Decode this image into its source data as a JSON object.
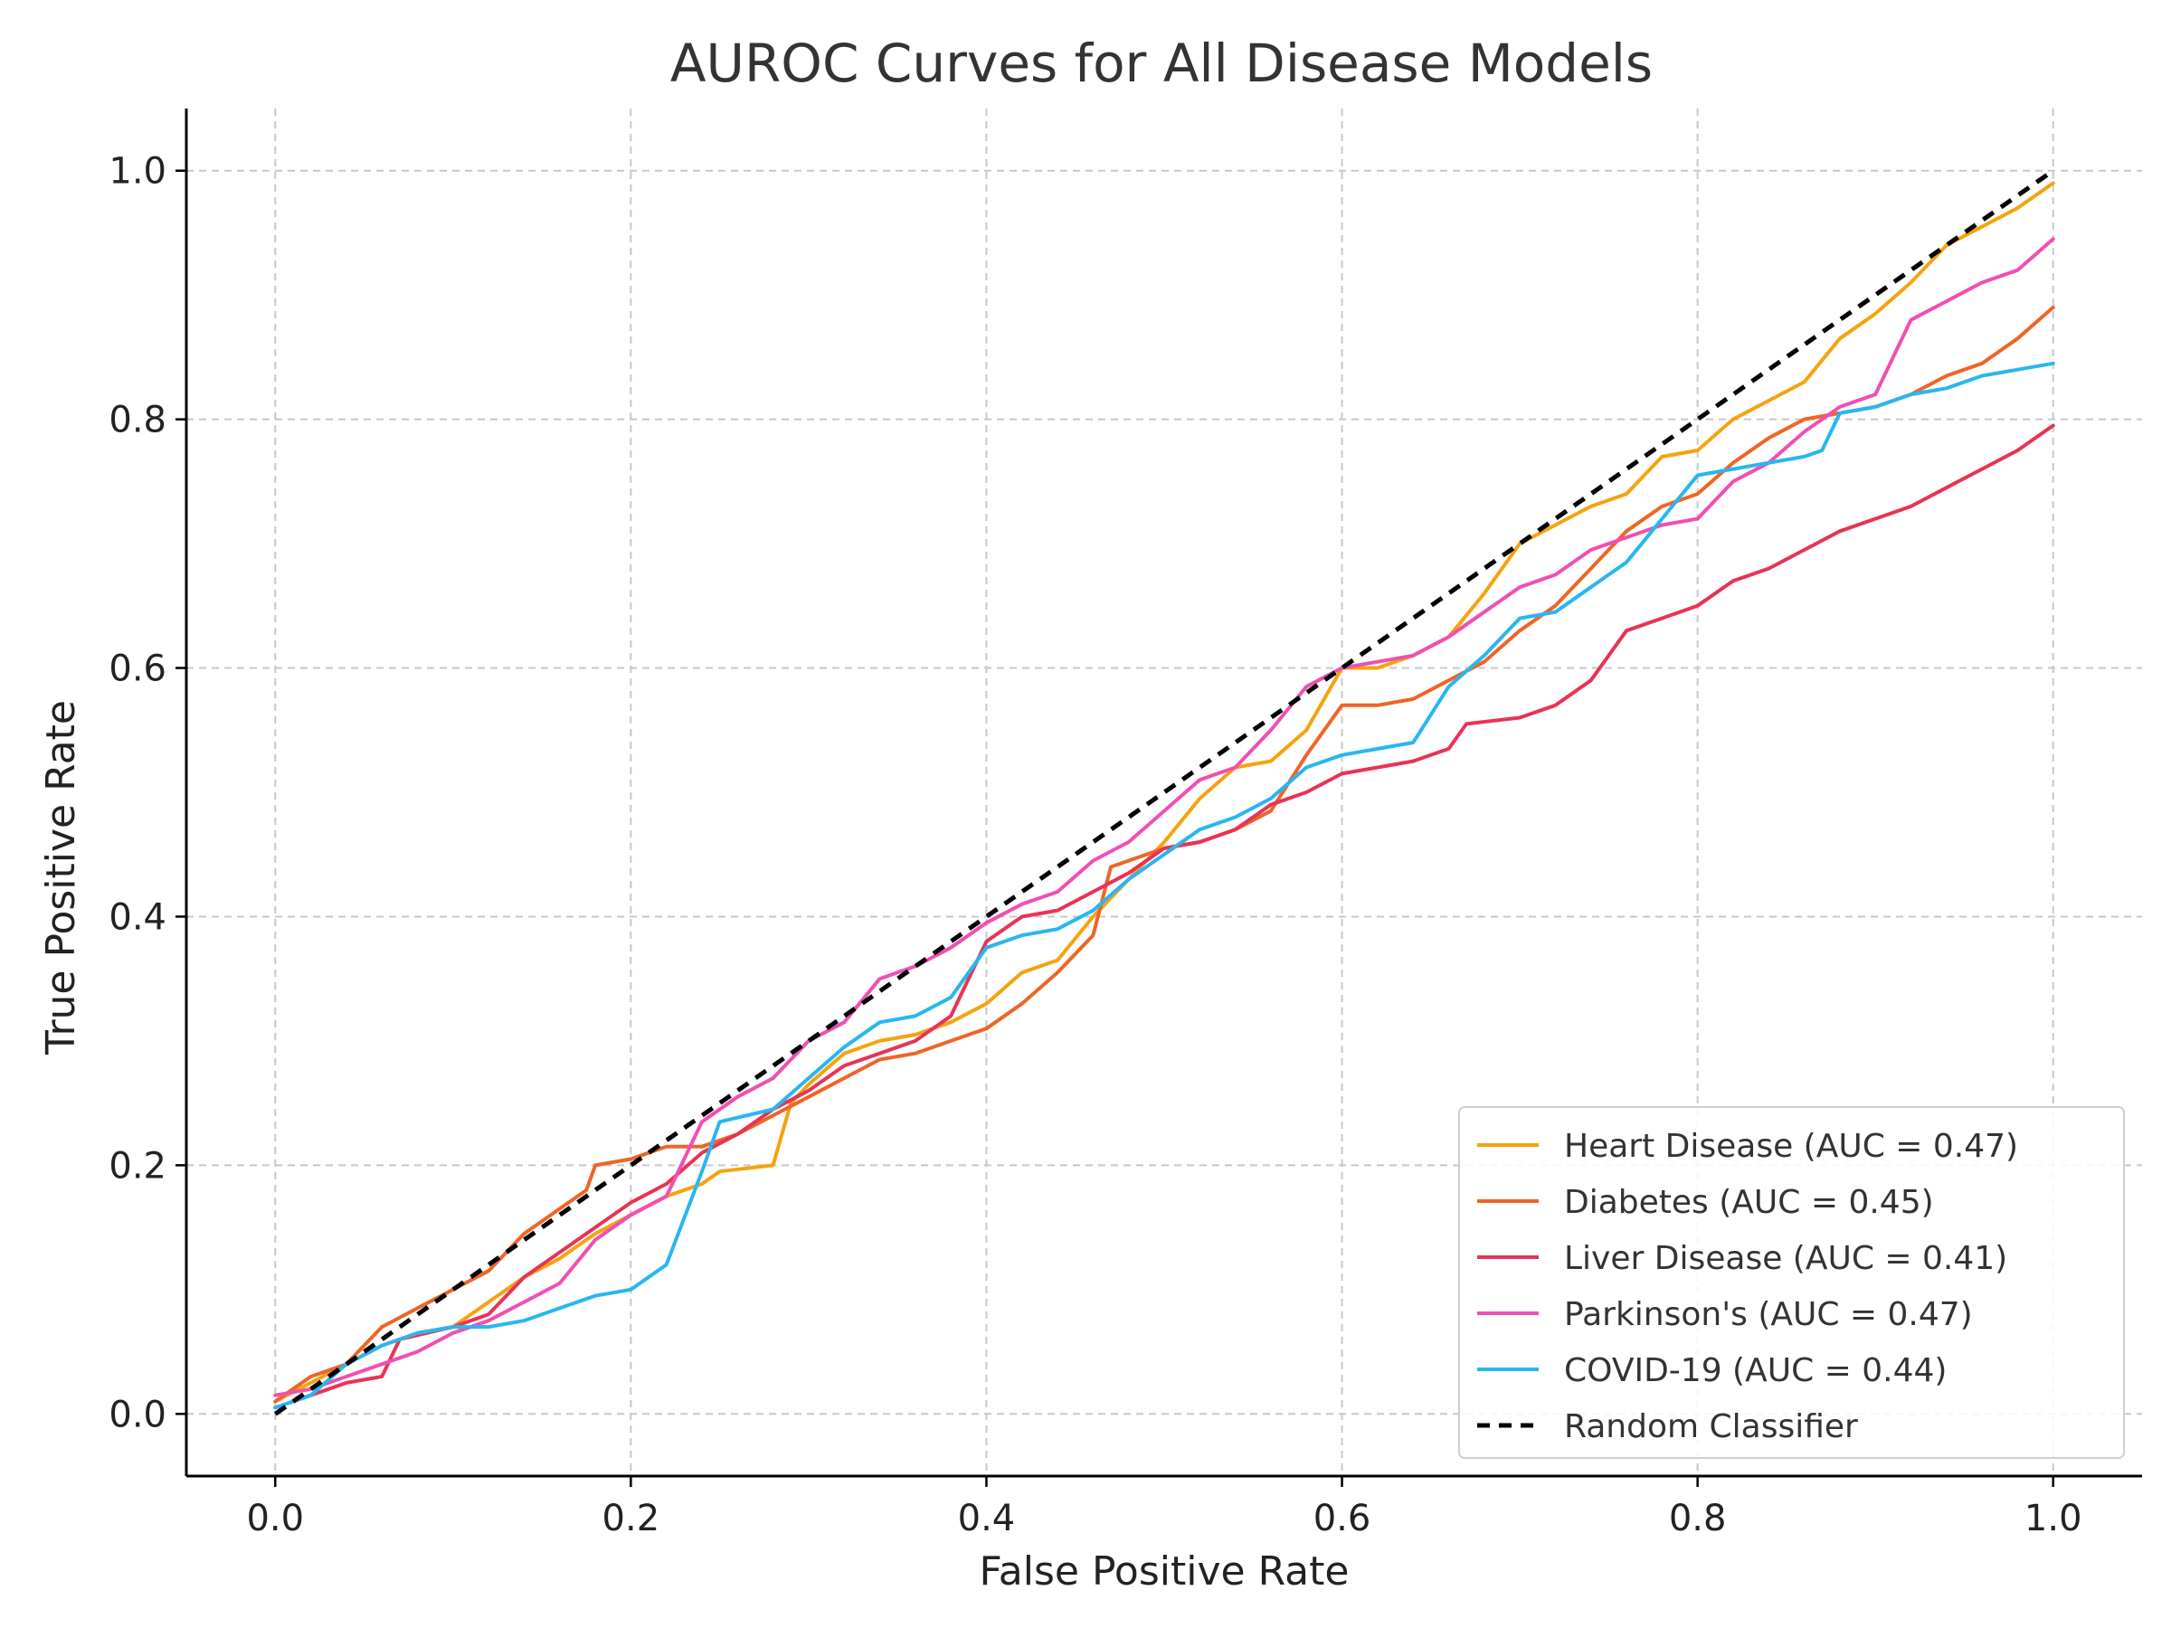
{
  "chart_data": {
    "type": "line",
    "title": "AUROC Curves for All Disease Models",
    "xlabel": "False Positive Rate",
    "ylabel": "True Positive Rate",
    "xlim": [
      -0.05,
      1.05
    ],
    "ylim": [
      -0.05,
      1.05
    ],
    "xticks": [
      0.0,
      0.2,
      0.4,
      0.6,
      0.8,
      1.0
    ],
    "yticks": [
      0.0,
      0.2,
      0.4,
      0.6,
      0.8,
      1.0
    ],
    "xtick_labels": [
      "0.0",
      "0.2",
      "0.4",
      "0.6",
      "0.8",
      "1.0"
    ],
    "ytick_labels": [
      "0.0",
      "0.2",
      "0.4",
      "0.6",
      "0.8",
      "1.0"
    ],
    "grid": true,
    "grid_style": "dashed",
    "legend_position": "lower-right",
    "series": [
      {
        "name": "Heart Disease (AUC = 0.47)",
        "color": "#f5a30f",
        "dash": "solid",
        "points": [
          [
            0.0,
            0.01
          ],
          [
            0.02,
            0.025
          ],
          [
            0.04,
            0.04
          ],
          [
            0.06,
            0.055
          ],
          [
            0.08,
            0.065
          ],
          [
            0.1,
            0.07
          ],
          [
            0.12,
            0.09
          ],
          [
            0.14,
            0.11
          ],
          [
            0.16,
            0.125
          ],
          [
            0.18,
            0.145
          ],
          [
            0.2,
            0.16
          ],
          [
            0.22,
            0.175
          ],
          [
            0.24,
            0.185
          ],
          [
            0.25,
            0.195
          ],
          [
            0.28,
            0.2
          ],
          [
            0.29,
            0.25
          ],
          [
            0.3,
            0.265
          ],
          [
            0.32,
            0.29
          ],
          [
            0.34,
            0.3
          ],
          [
            0.36,
            0.305
          ],
          [
            0.38,
            0.315
          ],
          [
            0.4,
            0.33
          ],
          [
            0.42,
            0.355
          ],
          [
            0.44,
            0.365
          ],
          [
            0.46,
            0.4
          ],
          [
            0.48,
            0.43
          ],
          [
            0.5,
            0.46
          ],
          [
            0.52,
            0.495
          ],
          [
            0.54,
            0.52
          ],
          [
            0.56,
            0.525
          ],
          [
            0.58,
            0.55
          ],
          [
            0.6,
            0.6
          ],
          [
            0.62,
            0.6
          ],
          [
            0.64,
            0.61
          ],
          [
            0.66,
            0.625
          ],
          [
            0.68,
            0.66
          ],
          [
            0.7,
            0.7
          ],
          [
            0.72,
            0.715
          ],
          [
            0.74,
            0.73
          ],
          [
            0.76,
            0.74
          ],
          [
            0.78,
            0.77
          ],
          [
            0.8,
            0.775
          ],
          [
            0.82,
            0.8
          ],
          [
            0.84,
            0.815
          ],
          [
            0.86,
            0.83
          ],
          [
            0.88,
            0.865
          ],
          [
            0.9,
            0.885
          ],
          [
            0.92,
            0.91
          ],
          [
            0.94,
            0.94
          ],
          [
            0.96,
            0.955
          ],
          [
            0.98,
            0.97
          ],
          [
            1.0,
            0.99
          ]
        ]
      },
      {
        "name": "Diabetes (AUC = 0.45)",
        "color": "#ee6526",
        "dash": "solid",
        "points": [
          [
            0.0,
            0.01
          ],
          [
            0.02,
            0.03
          ],
          [
            0.04,
            0.04
          ],
          [
            0.06,
            0.07
          ],
          [
            0.08,
            0.085
          ],
          [
            0.1,
            0.1
          ],
          [
            0.12,
            0.115
          ],
          [
            0.14,
            0.145
          ],
          [
            0.16,
            0.165
          ],
          [
            0.175,
            0.18
          ],
          [
            0.18,
            0.2
          ],
          [
            0.2,
            0.205
          ],
          [
            0.22,
            0.215
          ],
          [
            0.24,
            0.215
          ],
          [
            0.26,
            0.225
          ],
          [
            0.28,
            0.24
          ],
          [
            0.3,
            0.255
          ],
          [
            0.32,
            0.27
          ],
          [
            0.34,
            0.285
          ],
          [
            0.36,
            0.29
          ],
          [
            0.38,
            0.3
          ],
          [
            0.4,
            0.31
          ],
          [
            0.42,
            0.33
          ],
          [
            0.44,
            0.355
          ],
          [
            0.46,
            0.385
          ],
          [
            0.47,
            0.44
          ],
          [
            0.5,
            0.455
          ],
          [
            0.52,
            0.46
          ],
          [
            0.54,
            0.47
          ],
          [
            0.56,
            0.485
          ],
          [
            0.58,
            0.53
          ],
          [
            0.6,
            0.57
          ],
          [
            0.62,
            0.57
          ],
          [
            0.64,
            0.575
          ],
          [
            0.66,
            0.59
          ],
          [
            0.68,
            0.605
          ],
          [
            0.7,
            0.63
          ],
          [
            0.72,
            0.65
          ],
          [
            0.74,
            0.68
          ],
          [
            0.76,
            0.71
          ],
          [
            0.78,
            0.73
          ],
          [
            0.8,
            0.74
          ],
          [
            0.82,
            0.765
          ],
          [
            0.84,
            0.785
          ],
          [
            0.86,
            0.8
          ],
          [
            0.88,
            0.805
          ],
          [
            0.9,
            0.81
          ],
          [
            0.92,
            0.82
          ],
          [
            0.94,
            0.835
          ],
          [
            0.96,
            0.845
          ],
          [
            0.98,
            0.865
          ],
          [
            1.0,
            0.89
          ]
        ]
      },
      {
        "name": "Liver Disease (AUC = 0.41)",
        "color": "#e83355",
        "dash": "solid",
        "points": [
          [
            0.0,
            0.005
          ],
          [
            0.02,
            0.015
          ],
          [
            0.04,
            0.025
          ],
          [
            0.06,
            0.03
          ],
          [
            0.07,
            0.06
          ],
          [
            0.1,
            0.07
          ],
          [
            0.12,
            0.08
          ],
          [
            0.14,
            0.11
          ],
          [
            0.16,
            0.13
          ],
          [
            0.18,
            0.15
          ],
          [
            0.2,
            0.17
          ],
          [
            0.22,
            0.185
          ],
          [
            0.24,
            0.21
          ],
          [
            0.26,
            0.225
          ],
          [
            0.28,
            0.245
          ],
          [
            0.3,
            0.26
          ],
          [
            0.32,
            0.28
          ],
          [
            0.34,
            0.29
          ],
          [
            0.36,
            0.3
          ],
          [
            0.38,
            0.32
          ],
          [
            0.4,
            0.38
          ],
          [
            0.42,
            0.4
          ],
          [
            0.44,
            0.405
          ],
          [
            0.46,
            0.42
          ],
          [
            0.48,
            0.435
          ],
          [
            0.5,
            0.455
          ],
          [
            0.52,
            0.46
          ],
          [
            0.54,
            0.47
          ],
          [
            0.56,
            0.49
          ],
          [
            0.58,
            0.5
          ],
          [
            0.6,
            0.515
          ],
          [
            0.62,
            0.52
          ],
          [
            0.64,
            0.525
          ],
          [
            0.66,
            0.535
          ],
          [
            0.67,
            0.555
          ],
          [
            0.7,
            0.56
          ],
          [
            0.72,
            0.57
          ],
          [
            0.74,
            0.59
          ],
          [
            0.76,
            0.63
          ],
          [
            0.78,
            0.64
          ],
          [
            0.8,
            0.65
          ],
          [
            0.82,
            0.67
          ],
          [
            0.84,
            0.68
          ],
          [
            0.86,
            0.695
          ],
          [
            0.88,
            0.71
          ],
          [
            0.9,
            0.72
          ],
          [
            0.92,
            0.73
          ],
          [
            0.94,
            0.745
          ],
          [
            0.96,
            0.76
          ],
          [
            0.98,
            0.775
          ],
          [
            1.0,
            0.795
          ]
        ]
      },
      {
        "name": "Parkinson's (AUC = 0.47)",
        "color": "#f04fb3",
        "dash": "solid",
        "points": [
          [
            0.0,
            0.015
          ],
          [
            0.02,
            0.02
          ],
          [
            0.04,
            0.03
          ],
          [
            0.06,
            0.04
          ],
          [
            0.08,
            0.05
          ],
          [
            0.1,
            0.065
          ],
          [
            0.12,
            0.075
          ],
          [
            0.14,
            0.09
          ],
          [
            0.16,
            0.105
          ],
          [
            0.18,
            0.14
          ],
          [
            0.2,
            0.16
          ],
          [
            0.22,
            0.175
          ],
          [
            0.24,
            0.235
          ],
          [
            0.26,
            0.255
          ],
          [
            0.28,
            0.27
          ],
          [
            0.3,
            0.3
          ],
          [
            0.32,
            0.315
          ],
          [
            0.34,
            0.35
          ],
          [
            0.36,
            0.36
          ],
          [
            0.38,
            0.375
          ],
          [
            0.4,
            0.395
          ],
          [
            0.42,
            0.41
          ],
          [
            0.44,
            0.42
          ],
          [
            0.46,
            0.445
          ],
          [
            0.48,
            0.46
          ],
          [
            0.5,
            0.485
          ],
          [
            0.52,
            0.51
          ],
          [
            0.54,
            0.52
          ],
          [
            0.56,
            0.55
          ],
          [
            0.58,
            0.585
          ],
          [
            0.6,
            0.6
          ],
          [
            0.62,
            0.605
          ],
          [
            0.64,
            0.61
          ],
          [
            0.66,
            0.625
          ],
          [
            0.68,
            0.645
          ],
          [
            0.7,
            0.665
          ],
          [
            0.72,
            0.675
          ],
          [
            0.74,
            0.695
          ],
          [
            0.76,
            0.705
          ],
          [
            0.78,
            0.715
          ],
          [
            0.8,
            0.72
          ],
          [
            0.82,
            0.75
          ],
          [
            0.84,
            0.765
          ],
          [
            0.86,
            0.79
          ],
          [
            0.88,
            0.81
          ],
          [
            0.9,
            0.82
          ],
          [
            0.92,
            0.88
          ],
          [
            0.94,
            0.895
          ],
          [
            0.96,
            0.91
          ],
          [
            0.98,
            0.92
          ],
          [
            1.0,
            0.945
          ]
        ]
      },
      {
        "name": "COVID-19 (AUC = 0.44)",
        "color": "#29b6f0",
        "dash": "solid",
        "points": [
          [
            0.0,
            0.005
          ],
          [
            0.02,
            0.015
          ],
          [
            0.04,
            0.04
          ],
          [
            0.06,
            0.055
          ],
          [
            0.08,
            0.065
          ],
          [
            0.1,
            0.07
          ],
          [
            0.12,
            0.07
          ],
          [
            0.14,
            0.075
          ],
          [
            0.16,
            0.085
          ],
          [
            0.18,
            0.095
          ],
          [
            0.2,
            0.1
          ],
          [
            0.22,
            0.12
          ],
          [
            0.24,
            0.195
          ],
          [
            0.25,
            0.235
          ],
          [
            0.28,
            0.245
          ],
          [
            0.3,
            0.27
          ],
          [
            0.32,
            0.295
          ],
          [
            0.34,
            0.315
          ],
          [
            0.36,
            0.32
          ],
          [
            0.38,
            0.335
          ],
          [
            0.4,
            0.375
          ],
          [
            0.42,
            0.385
          ],
          [
            0.44,
            0.39
          ],
          [
            0.46,
            0.405
          ],
          [
            0.48,
            0.43
          ],
          [
            0.5,
            0.45
          ],
          [
            0.52,
            0.47
          ],
          [
            0.54,
            0.48
          ],
          [
            0.56,
            0.495
          ],
          [
            0.58,
            0.52
          ],
          [
            0.6,
            0.53
          ],
          [
            0.62,
            0.535
          ],
          [
            0.64,
            0.54
          ],
          [
            0.66,
            0.585
          ],
          [
            0.68,
            0.61
          ],
          [
            0.7,
            0.64
          ],
          [
            0.72,
            0.645
          ],
          [
            0.74,
            0.665
          ],
          [
            0.76,
            0.685
          ],
          [
            0.78,
            0.72
          ],
          [
            0.8,
            0.755
          ],
          [
            0.82,
            0.76
          ],
          [
            0.84,
            0.765
          ],
          [
            0.86,
            0.77
          ],
          [
            0.87,
            0.775
          ],
          [
            0.88,
            0.805
          ],
          [
            0.9,
            0.81
          ],
          [
            0.92,
            0.82
          ],
          [
            0.94,
            0.825
          ],
          [
            0.96,
            0.835
          ],
          [
            0.98,
            0.84
          ],
          [
            1.0,
            0.845
          ]
        ]
      },
      {
        "name": "Random Classifier",
        "color": "#000000",
        "dash": "dashed",
        "points": [
          [
            0.0,
            0.0
          ],
          [
            1.0,
            1.0
          ]
        ]
      }
    ]
  }
}
